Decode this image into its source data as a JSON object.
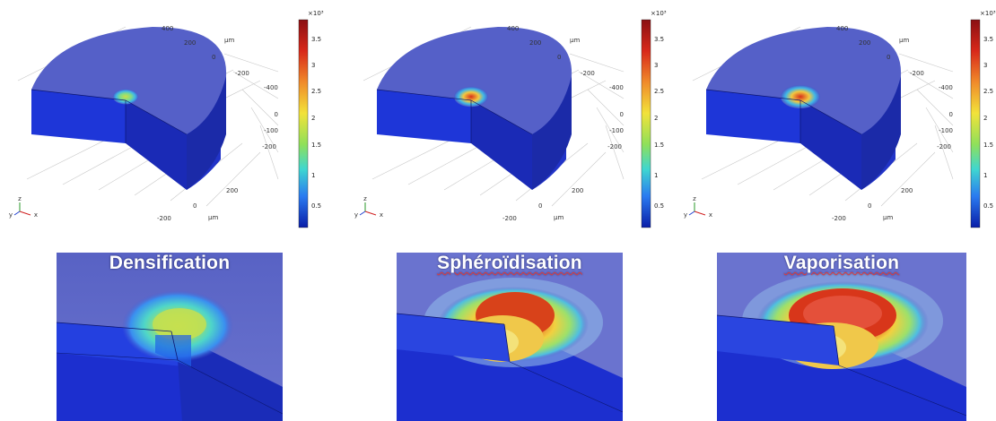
{
  "colorbar": {
    "exponent": "×10³",
    "ticks": [
      "3.5",
      "3",
      "2.5",
      "2",
      "1.5",
      "1",
      "0.5"
    ]
  },
  "axes": {
    "unit": "µm",
    "ticks_a": [
      "400",
      "200",
      "0",
      "-200",
      "-400"
    ],
    "ticks_b": [
      "0",
      "-100",
      "-200"
    ],
    "ticks_c": [
      "200",
      "0",
      "-200"
    ],
    "triad": [
      "z",
      "y",
      "x"
    ]
  },
  "zooms": [
    {
      "title": "Densification"
    },
    {
      "title": "Sphéroïdisation"
    },
    {
      "title": "Vaporisation"
    }
  ],
  "colors": {
    "body": "#1a2fc4",
    "top_surface": "#5a64c9",
    "hot": "#d32a16",
    "background": "#ffffff"
  }
}
